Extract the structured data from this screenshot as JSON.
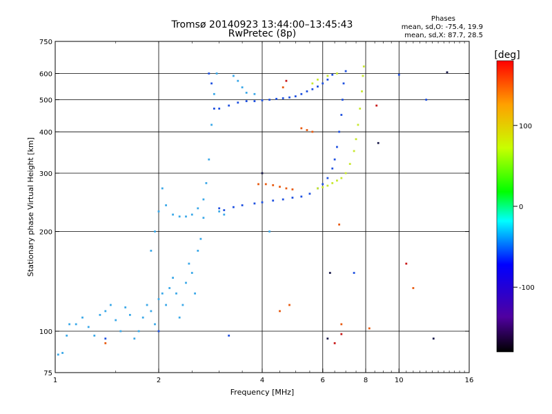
{
  "chart_data": {
    "type": "scatter",
    "title": "Tromsø 20140923 13:44:00–13:45:43",
    "subtitle": "RwPretec (8p)",
    "xlabel": "Frequency [MHz]",
    "ylabel": "Stationary phase Virtual Height [km]",
    "x_scale": "log2",
    "y_scale": "log",
    "xlim": [
      1,
      16
    ],
    "ylim": [
      75,
      750
    ],
    "x_ticks": [
      1,
      2,
      4,
      6,
      8,
      10,
      16
    ],
    "y_ticks": [
      75,
      100,
      200,
      300,
      400,
      500,
      600,
      750
    ],
    "grid_x": [
      2,
      4,
      6,
      8,
      10
    ],
    "grid_y": [
      100,
      200,
      300,
      400,
      500,
      600
    ],
    "stats": {
      "heading": "Phases",
      "line_o": "mean, sd,O: -75.4, 19.9",
      "line_x": "mean, sd,X:  87.7, 28.5"
    },
    "colorbar": {
      "label": "[deg]",
      "range": [
        -180,
        180
      ],
      "ticks": [
        100,
        0,
        -100
      ],
      "tick_labels": [
        "100",
        "0",
        "-100"
      ]
    },
    "series": [
      {
        "color": "#3aa8e8",
        "phase": -80,
        "points": [
          [
            1.02,
            85
          ],
          [
            1.05,
            86
          ],
          [
            1.08,
            97
          ],
          [
            1.1,
            105
          ],
          [
            1.15,
            105
          ],
          [
            1.2,
            110
          ],
          [
            1.25,
            103
          ],
          [
            1.3,
            97
          ],
          [
            1.35,
            112
          ],
          [
            1.4,
            115
          ],
          [
            1.45,
            120
          ],
          [
            1.5,
            108
          ],
          [
            1.55,
            100
          ],
          [
            1.6,
            118
          ],
          [
            1.65,
            112
          ],
          [
            1.7,
            95
          ],
          [
            1.75,
            100
          ],
          [
            1.8,
            110
          ],
          [
            1.85,
            120
          ],
          [
            1.9,
            115
          ],
          [
            1.95,
            105
          ],
          [
            2.0,
            125
          ],
          [
            2.05,
            130
          ],
          [
            2.1,
            120
          ],
          [
            2.15,
            135
          ],
          [
            2.2,
            145
          ],
          [
            2.25,
            130
          ],
          [
            2.3,
            110
          ],
          [
            2.35,
            120
          ],
          [
            2.4,
            140
          ],
          [
            2.45,
            160
          ],
          [
            2.5,
            150
          ],
          [
            2.55,
            130
          ],
          [
            2.6,
            175
          ],
          [
            2.65,
            190
          ],
          [
            2.7,
            220
          ],
          [
            2.75,
            280
          ],
          [
            2.8,
            330
          ],
          [
            2.85,
            420
          ],
          [
            2.9,
            520
          ],
          [
            2.95,
            600
          ],
          [
            1.9,
            175
          ],
          [
            1.95,
            200
          ],
          [
            2.0,
            230
          ],
          [
            2.05,
            270
          ],
          [
            2.1,
            240
          ],
          [
            2.2,
            225
          ],
          [
            2.3,
            222
          ],
          [
            2.4,
            222
          ],
          [
            2.5,
            225
          ],
          [
            2.6,
            235
          ],
          [
            2.7,
            250
          ],
          [
            3.0,
            230
          ],
          [
            3.1,
            225
          ],
          [
            3.3,
            590
          ],
          [
            3.4,
            570
          ],
          [
            3.5,
            545
          ],
          [
            3.6,
            525
          ],
          [
            4.2,
            200
          ],
          [
            3.8,
            520
          ]
        ]
      },
      {
        "color": "#1e50e0",
        "phase": -95,
        "points": [
          [
            2.8,
            600
          ],
          [
            2.85,
            560
          ],
          [
            2.9,
            470
          ],
          [
            3.0,
            470
          ],
          [
            3.2,
            480
          ],
          [
            3.4,
            490
          ],
          [
            3.6,
            495
          ],
          [
            3.8,
            495
          ],
          [
            4.0,
            498
          ],
          [
            4.2,
            500
          ],
          [
            4.4,
            503
          ],
          [
            4.6,
            505
          ],
          [
            4.8,
            508
          ],
          [
            5.0,
            512
          ],
          [
            5.2,
            520
          ],
          [
            5.4,
            530
          ],
          [
            5.6,
            538
          ],
          [
            5.8,
            548
          ],
          [
            6.0,
            560
          ],
          [
            6.2,
            575
          ],
          [
            6.4,
            595
          ],
          [
            3.0,
            235
          ],
          [
            3.1,
            232
          ],
          [
            3.3,
            237
          ],
          [
            3.5,
            240
          ],
          [
            3.8,
            243
          ],
          [
            4.0,
            245
          ],
          [
            4.3,
            248
          ],
          [
            4.6,
            250
          ],
          [
            4.9,
            253
          ],
          [
            5.2,
            255
          ],
          [
            5.5,
            260
          ],
          [
            5.8,
            270
          ],
          [
            6.0,
            278
          ],
          [
            6.2,
            290
          ],
          [
            6.4,
            310
          ],
          [
            6.5,
            330
          ],
          [
            6.6,
            360
          ],
          [
            6.7,
            400
          ],
          [
            6.8,
            450
          ],
          [
            6.85,
            500
          ],
          [
            6.9,
            560
          ],
          [
            7.0,
            610
          ],
          [
            1.4,
            95
          ],
          [
            2.0,
            100
          ],
          [
            3.2,
            97
          ],
          [
            7.4,
            150
          ],
          [
            10.0,
            595
          ],
          [
            12.0,
            500
          ]
        ]
      },
      {
        "color": "#c8e830",
        "phase": 90,
        "points": [
          [
            5.8,
            270
          ],
          [
            6.0,
            272
          ],
          [
            6.2,
            275
          ],
          [
            6.4,
            280
          ],
          [
            6.6,
            285
          ],
          [
            6.8,
            290
          ],
          [
            7.0,
            300
          ],
          [
            7.2,
            320
          ],
          [
            7.4,
            350
          ],
          [
            7.5,
            380
          ],
          [
            7.6,
            420
          ],
          [
            7.7,
            470
          ],
          [
            7.8,
            530
          ],
          [
            7.85,
            590
          ],
          [
            7.9,
            630
          ],
          [
            5.6,
            560
          ],
          [
            5.8,
            575
          ],
          [
            6.2,
            590
          ],
          [
            6.6,
            600
          ]
        ]
      },
      {
        "color": "#e85a10",
        "phase": 140,
        "points": [
          [
            3.9,
            278
          ],
          [
            4.1,
            278
          ],
          [
            4.3,
            276
          ],
          [
            4.5,
            273
          ],
          [
            4.7,
            270
          ],
          [
            4.9,
            268
          ],
          [
            5.2,
            410
          ],
          [
            5.4,
            405
          ],
          [
            5.6,
            400
          ],
          [
            4.6,
            545
          ],
          [
            4.5,
            115
          ],
          [
            4.8,
            120
          ],
          [
            6.8,
            105
          ],
          [
            8.2,
            102
          ],
          [
            11.0,
            135
          ],
          [
            6.7,
            210
          ],
          [
            1.4,
            92
          ]
        ]
      },
      {
        "color": "#c81818",
        "phase": 165,
        "points": [
          [
            6.5,
            92
          ],
          [
            6.8,
            98
          ],
          [
            10.5,
            160
          ],
          [
            4.7,
            570
          ],
          [
            8.6,
            480
          ]
        ]
      },
      {
        "color": "#1a1a4a",
        "phase": -150,
        "points": [
          [
            4.0,
            300
          ],
          [
            6.2,
            95
          ],
          [
            6.3,
            150
          ],
          [
            8.7,
            370
          ],
          [
            13.8,
            605
          ],
          [
            12.6,
            95
          ]
        ]
      }
    ]
  }
}
